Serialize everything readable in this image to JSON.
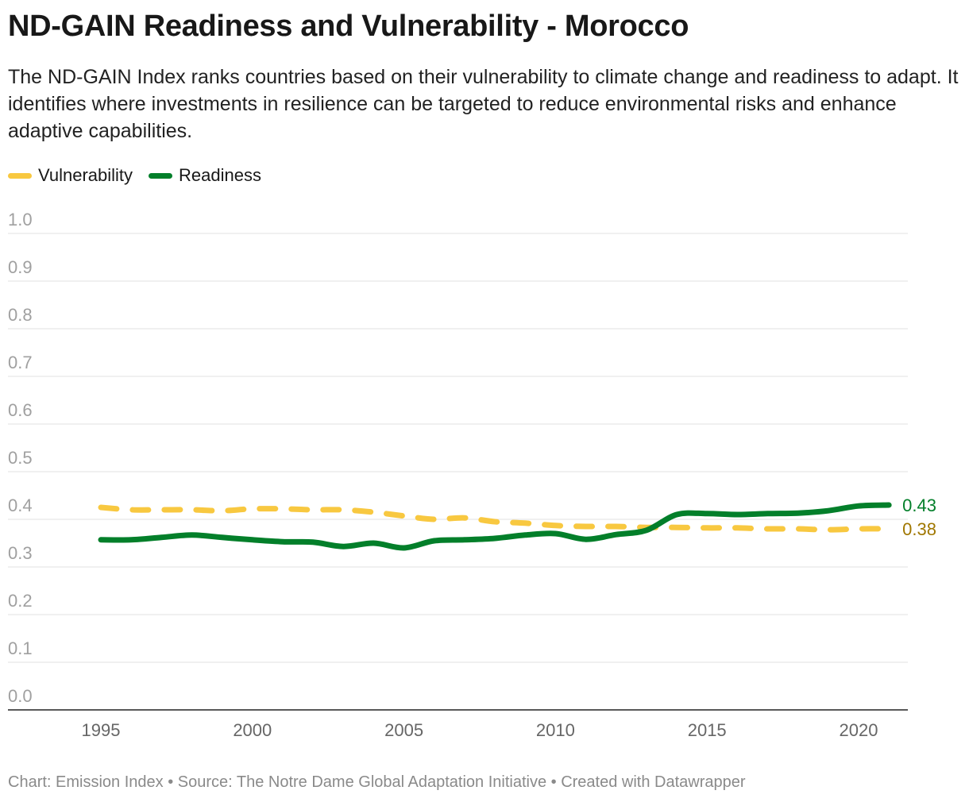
{
  "header": {
    "title": "ND-GAIN Readiness and Vulnerability - Morocco",
    "description": "The ND-GAIN Index ranks countries based on their vulnerability to climate change and readiness to adapt. It identifies where investments in resilience can be targeted to reduce environmental risks and enhance adaptive capabilities."
  },
  "footer": "Chart: Emission Index • Source: The Notre Dame Global Adaptation Initiative • Created with Datawrapper",
  "chart_data": {
    "type": "line",
    "title": "ND-GAIN Readiness and Vulnerability - Morocco",
    "xlabel": "",
    "ylabel": "",
    "ylim": [
      0,
      1
    ],
    "xlim": [
      1995,
      2021
    ],
    "grid": true,
    "legend": "top-left",
    "y_ticks": [
      "0.0",
      "0.1",
      "0.2",
      "0.3",
      "0.4",
      "0.5",
      "0.6",
      "0.7",
      "0.8",
      "0.9",
      "1.0"
    ],
    "x_ticks": [
      "1995",
      "2000",
      "2005",
      "2010",
      "2015",
      "2020"
    ],
    "x": [
      1995,
      1996,
      1997,
      1998,
      1999,
      2000,
      2001,
      2002,
      2003,
      2004,
      2005,
      2006,
      2007,
      2008,
      2009,
      2010,
      2011,
      2012,
      2013,
      2014,
      2015,
      2016,
      2017,
      2018,
      2019,
      2020,
      2021
    ],
    "series": [
      {
        "name": "Vulnerability",
        "color": "#f8c840",
        "label_color": "#a07700",
        "dashed": true,
        "end_label": "0.38",
        "values": [
          0.425,
          0.42,
          0.42,
          0.42,
          0.418,
          0.422,
          0.422,
          0.42,
          0.42,
          0.415,
          0.407,
          0.4,
          0.403,
          0.395,
          0.392,
          0.387,
          0.385,
          0.385,
          0.383,
          0.383,
          0.382,
          0.382,
          0.38,
          0.38,
          0.378,
          0.38,
          0.38
        ]
      },
      {
        "name": "Readiness",
        "color": "#037f2a",
        "label_color": "#037f2a",
        "dashed": false,
        "end_label": "0.43",
        "values": [
          0.357,
          0.357,
          0.362,
          0.367,
          0.362,
          0.357,
          0.353,
          0.352,
          0.343,
          0.35,
          0.34,
          0.355,
          0.357,
          0.36,
          0.367,
          0.37,
          0.358,
          0.368,
          0.377,
          0.41,
          0.412,
          0.41,
          0.412,
          0.413,
          0.418,
          0.428,
          0.43
        ]
      }
    ]
  }
}
